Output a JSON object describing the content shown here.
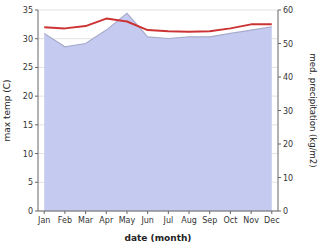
{
  "chart_data": {
    "type": "line",
    "categories": [
      "Jan",
      "Feb",
      "Mar",
      "Apr",
      "May",
      "Jun",
      "Jul",
      "Aug",
      "Sep",
      "Oct",
      "Nov",
      "Dec"
    ],
    "xlabel": "date (month)",
    "ylabel": "max temp (C)",
    "y2label": "med. precipitation (kg/m2)",
    "series": [
      {
        "type": "area",
        "axis": "y2",
        "color": "#c5caf0",
        "values": [
          53.0,
          49.0,
          50.0,
          54.0,
          59.0,
          52.0,
          51.5,
          52.0,
          52.0,
          53.0,
          54.0,
          55.0
        ]
      },
      {
        "type": "line",
        "color": "#cc3333",
        "values": [
          32.0,
          31.8,
          32.2,
          33.5,
          33.0,
          31.5,
          31.3,
          31.2,
          31.3,
          31.8,
          32.5,
          32.5
        ]
      }
    ],
    "ylim": [
      0,
      35
    ],
    "yticks": [
      0,
      5,
      10,
      15,
      20,
      25,
      30,
      35
    ],
    "y2lim": [
      0,
      60
    ],
    "y2ticks": [
      0,
      10,
      20,
      30,
      40,
      50,
      60
    ],
    "grid": true
  }
}
